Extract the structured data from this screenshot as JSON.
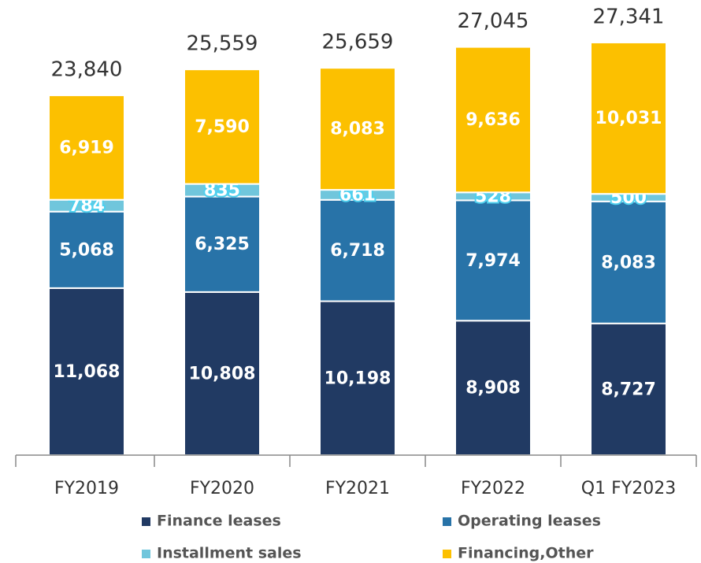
{
  "chart_data": {
    "type": "stacked_bar",
    "categories": [
      "FY2019",
      "FY2020",
      "FY2021",
      "FY2022",
      "Q1 FY2023"
    ],
    "series": [
      {
        "name": "Finance leases",
        "color": "#213a63",
        "values": [
          11068,
          10808,
          10198,
          8908,
          8727
        ],
        "value_labels": [
          "11,068",
          "10,808",
          "10,198",
          "8,908",
          "8,727"
        ]
      },
      {
        "name": "Operating leases",
        "color": "#2873a8",
        "values": [
          5068,
          6325,
          6718,
          7974,
          8083
        ],
        "value_labels": [
          "5,068",
          "6,325",
          "6,718",
          "7,974",
          "8,083"
        ]
      },
      {
        "name": "Installment sales",
        "color": "#70c6dc",
        "values": [
          784,
          835,
          661,
          528,
          500
        ],
        "value_labels": [
          "784",
          "835",
          "661",
          "528",
          "500"
        ]
      },
      {
        "name": "Financing,Other",
        "color": "#fcc000",
        "values": [
          6919,
          7590,
          8083,
          9636,
          10031
        ],
        "value_labels": [
          "6,919",
          "7,590",
          "8,083",
          "9,636",
          "10,031"
        ]
      }
    ],
    "totals": [
      23840,
      25559,
      25659,
      27045,
      27341
    ],
    "total_labels": [
      "23,840",
      "25,559",
      "25,659",
      "27,045",
      "27,341"
    ],
    "ylim": [
      0,
      30000
    ]
  }
}
